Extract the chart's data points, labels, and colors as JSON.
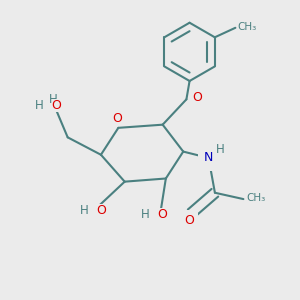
{
  "background_color": "#ebebeb",
  "bond_color": "#4a8080",
  "o_color": "#dd0000",
  "n_color": "#0000bb",
  "figsize": [
    3.0,
    3.0
  ],
  "dpi": 100,
  "ring_o_label": "O",
  "glyc_o_label": "O",
  "n_label": "N",
  "h_label": "H",
  "ho_label": "H",
  "o_label": "O"
}
